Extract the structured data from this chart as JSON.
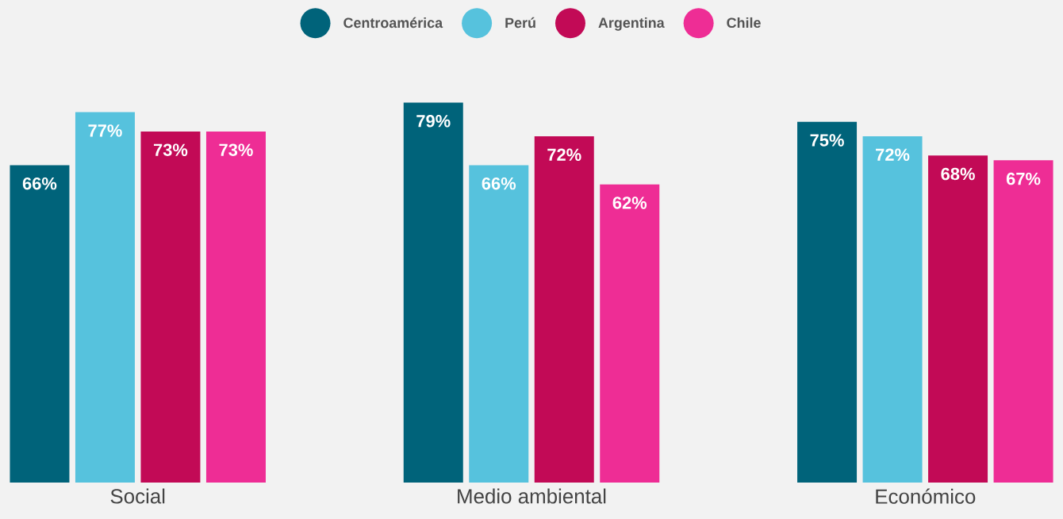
{
  "chart_data": {
    "type": "bar",
    "categories": [
      "Social",
      "Medio ambiental",
      "Económico"
    ],
    "legend": "top",
    "series": [
      {
        "name": "Centroamérica",
        "color": "#00637a",
        "values": [
          66,
          79,
          75
        ],
        "value_labels": [
          "66%",
          "79%",
          "75%"
        ]
      },
      {
        "name": "Perú",
        "color": "#56c2dd",
        "values": [
          77,
          66,
          72
        ],
        "value_labels": [
          "77%",
          "66%",
          "72%"
        ]
      },
      {
        "name": "Argentina",
        "color": "#c20a56",
        "values": [
          73,
          72,
          68
        ],
        "value_labels": [
          "73%",
          "72%",
          "68%"
        ]
      },
      {
        "name": "Chile",
        "color": "#ee2d95",
        "values": [
          73,
          62,
          67
        ],
        "value_labels": [
          "73%",
          "62%",
          "67%"
        ]
      }
    ]
  }
}
